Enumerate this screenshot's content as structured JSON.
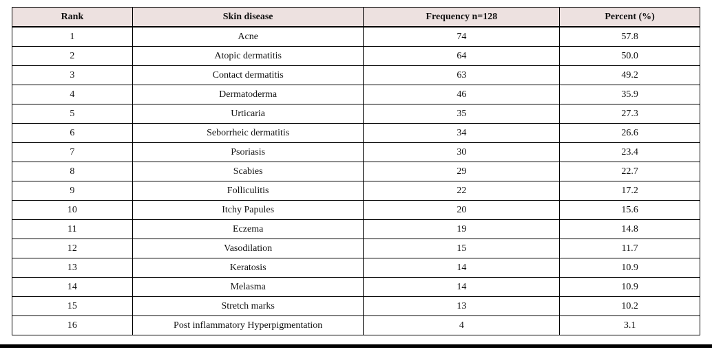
{
  "theme": {
    "header_bg": "#ede1e0",
    "border_color": "#000000",
    "text_color": "#111111",
    "page_bg": "#ffffff"
  },
  "table": {
    "columns": [
      "Rank",
      "Skin disease",
      "Frequency n=128",
      "Percent (%)"
    ],
    "rows": [
      [
        "1",
        "Acne",
        "74",
        "57.8"
      ],
      [
        "2",
        "Atopic dermatitis",
        "64",
        "50.0"
      ],
      [
        "3",
        "Contact dermatitis",
        "63",
        "49.2"
      ],
      [
        "4",
        "Dermatoderma",
        "46",
        "35.9"
      ],
      [
        "5",
        "Urticaria",
        "35",
        "27.3"
      ],
      [
        "6",
        "Seborrheic dermatitis",
        "34",
        "26.6"
      ],
      [
        "7",
        "Psoriasis",
        "30",
        "23.4"
      ],
      [
        "8",
        "Scabies",
        "29",
        "22.7"
      ],
      [
        "9",
        "Folliculitis",
        "22",
        "17.2"
      ],
      [
        "10",
        "Itchy Papules",
        "20",
        "15.6"
      ],
      [
        "11",
        "Eczema",
        "19",
        "14.8"
      ],
      [
        "12",
        "Vasodilation",
        "15",
        "11.7"
      ],
      [
        "13",
        "Keratosis",
        "14",
        "10.9"
      ],
      [
        "14",
        "Melasma",
        "14",
        "10.9"
      ],
      [
        "15",
        "Stretch marks",
        "13",
        "10.2"
      ],
      [
        "16",
        "Post inflammatory Hyperpigmentation",
        "4",
        "3.1"
      ]
    ]
  }
}
